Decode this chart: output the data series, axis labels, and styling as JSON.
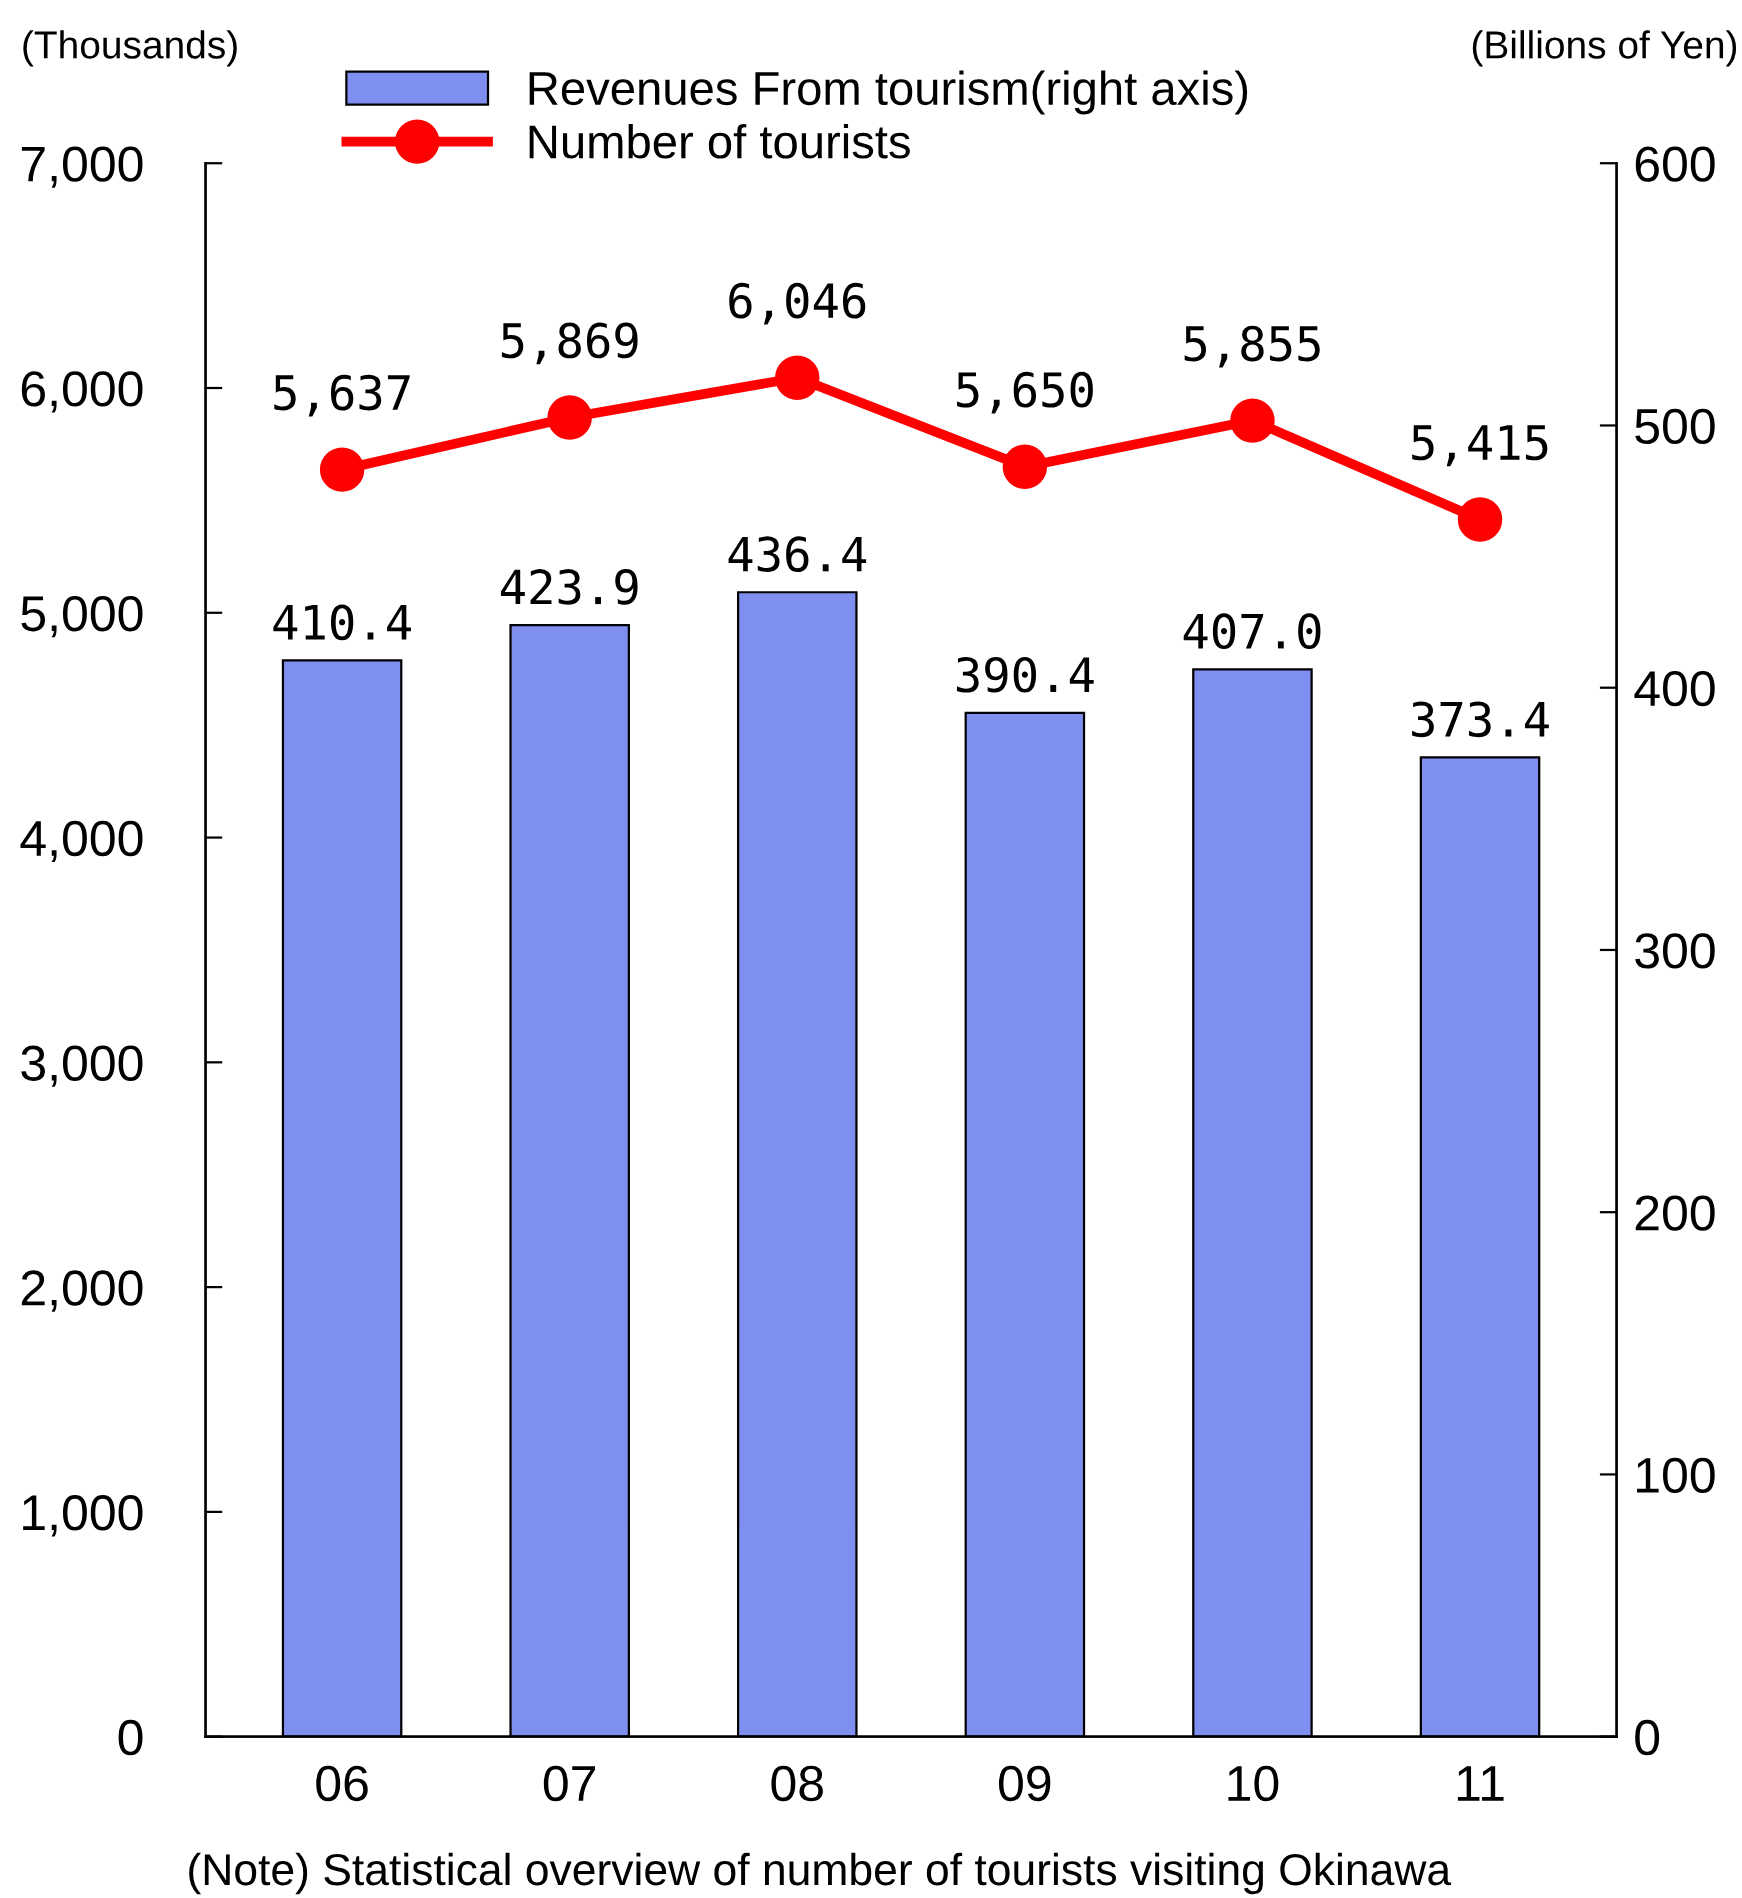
{
  "chart_data": {
    "type": "bar",
    "categories": [
      "06",
      "07",
      "08",
      "09",
      "10",
      "11"
    ],
    "ylabel": "(Thousands)",
    "y2label": "(Billions of Yen)",
    "series": [
      {
        "name": "Revenues From tourism(right axis)",
        "axis": "y2",
        "color": "#7f8ff0",
        "values": [
          410.4,
          423.9,
          436.4,
          390.4,
          407.0,
          373.4
        ],
        "value_labels": [
          "410.4",
          "423.9",
          "436.4",
          "390.4",
          "407.0",
          "373.4"
        ]
      },
      {
        "name": "Number of tourists",
        "type": "line",
        "color": "#ff0000",
        "values": [
          5637,
          5869,
          6046,
          5650,
          5855,
          5415
        ],
        "value_labels": [
          "5,637",
          "5,869",
          "6,046",
          "5,650",
          "5,855",
          "5,415"
        ]
      }
    ],
    "ylim": [
      0,
      7000
    ],
    "yticks": [
      0,
      {
        "value": 1000,
        "label": "1,000"
      },
      {
        "value": 2000,
        "label": "2,000"
      },
      {
        "value": 3000,
        "label": "3,000"
      },
      {
        "value": 4000,
        "label": "4,000"
      },
      {
        "value": 5000,
        "label": "5,000"
      },
      {
        "value": 6000,
        "label": "6,000"
      },
      {
        "value": 7000,
        "label": "7,000"
      }
    ],
    "y2lim": [
      0,
      600
    ],
    "y2ticks": [
      0,
      100,
      200,
      300,
      400,
      500,
      600
    ],
    "marker": "circle",
    "line_style": "solid",
    "grid": false,
    "legend": "top",
    "annotations": [
      "(Note) Statistical overview of number of tourists visiting Okinawa"
    ]
  }
}
